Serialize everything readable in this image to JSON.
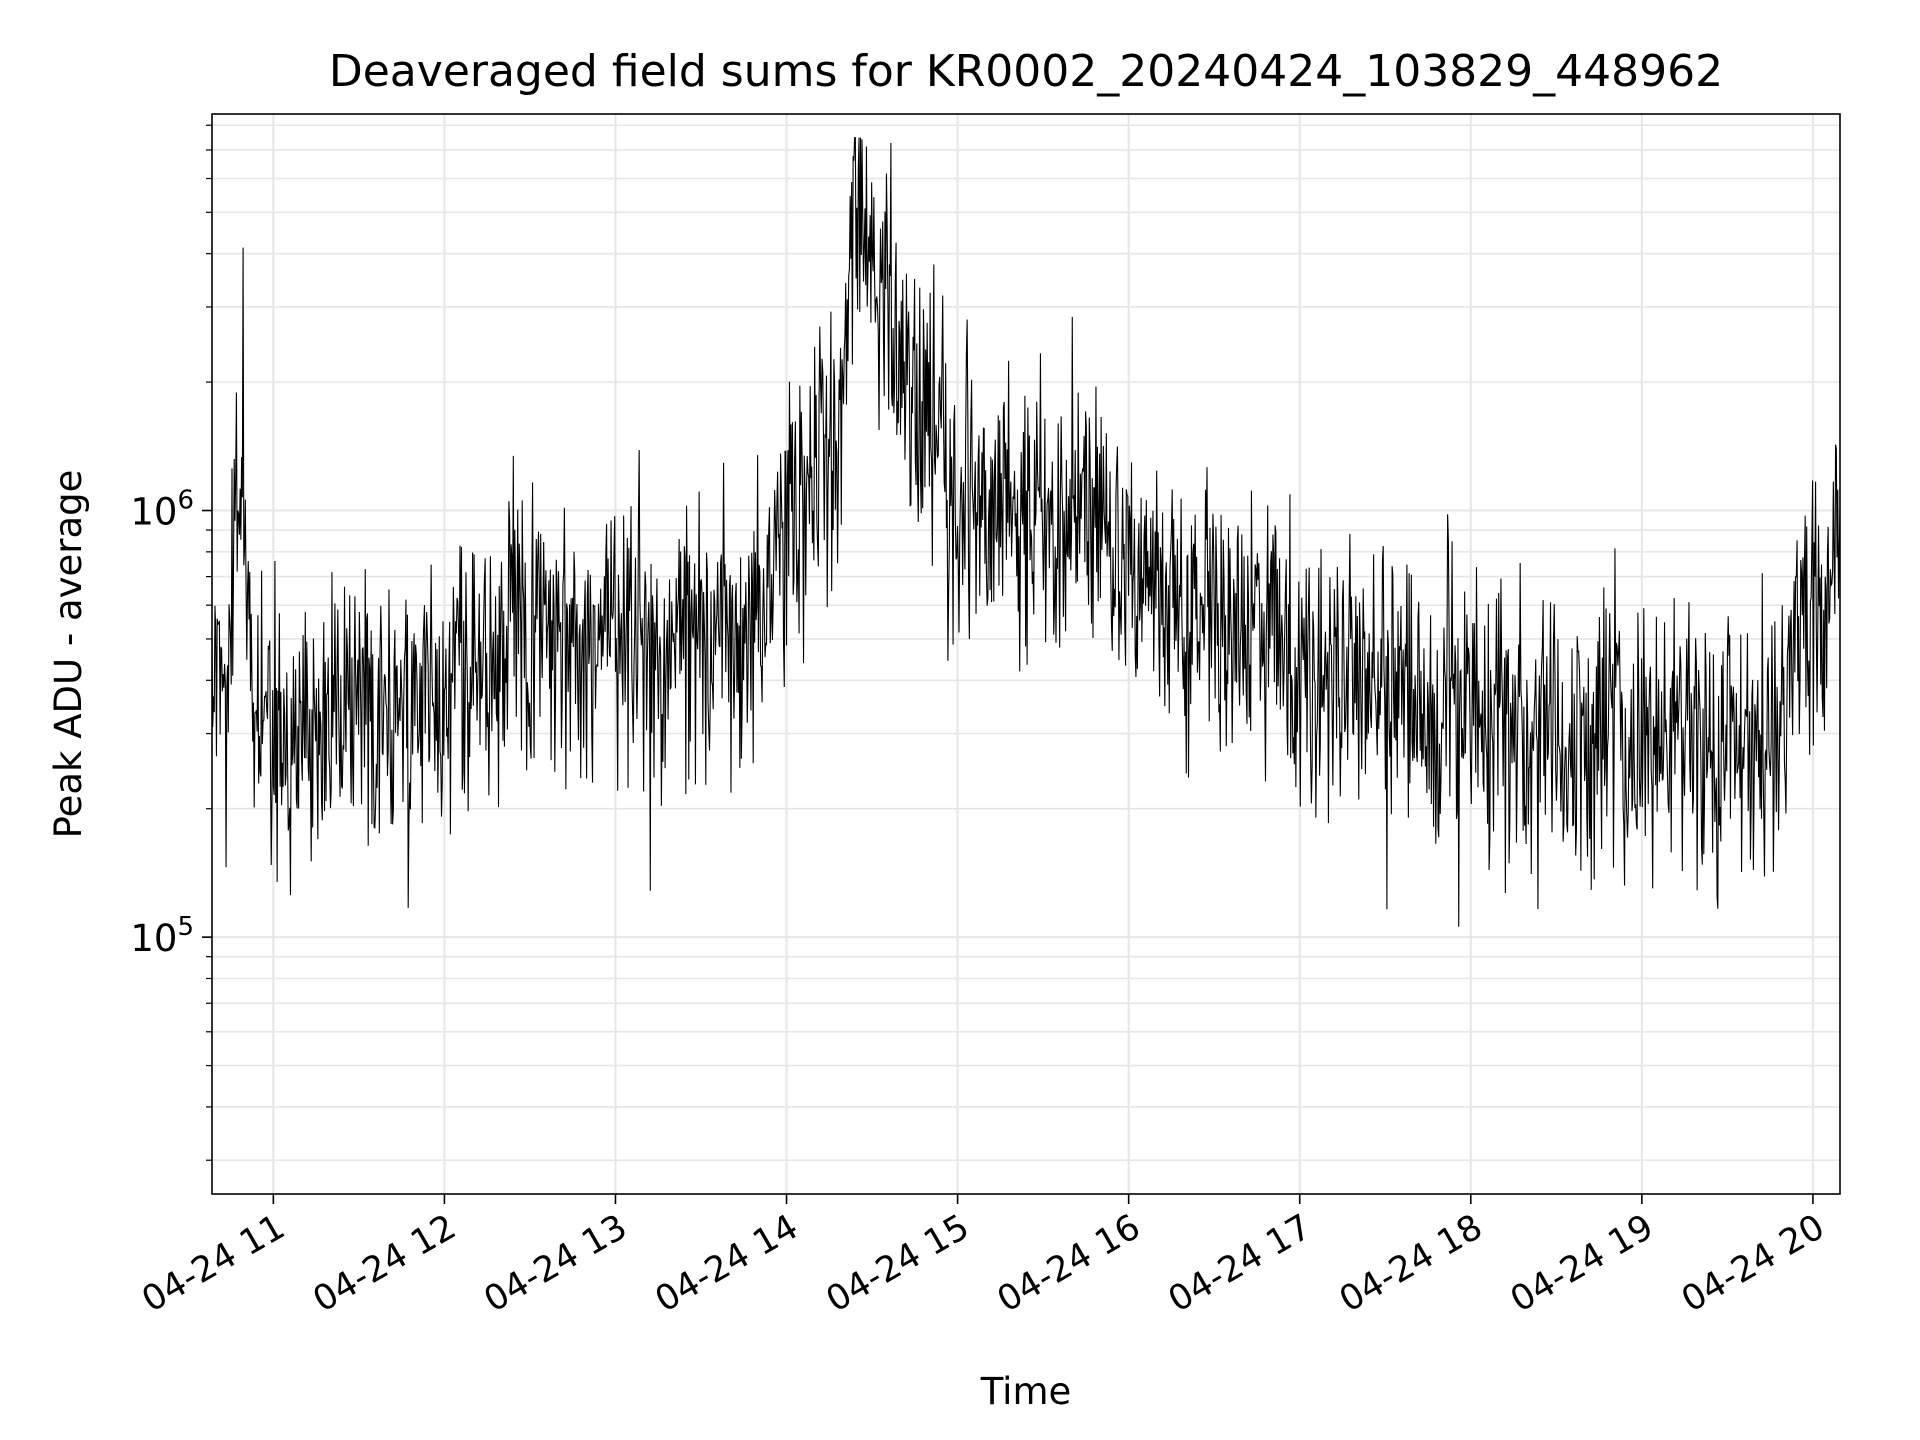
{
  "chart_data": {
    "type": "line",
    "title": "Deaveraged field sums for KR0002_20240424_103829_448962",
    "xlabel": "Time",
    "ylabel": "Peak ADU - average",
    "x_scale": "time",
    "y_scale": "log",
    "xlim": [
      "2024-04-24T10:38:29",
      "2024-04-24T20:09:30"
    ],
    "ylim": [
      25000,
      8500000
    ],
    "x_ticks": [
      {
        "value": "2024-04-24T11:00:00",
        "label": "04-24 11"
      },
      {
        "value": "2024-04-24T12:00:00",
        "label": "04-24 12"
      },
      {
        "value": "2024-04-24T13:00:00",
        "label": "04-24 13"
      },
      {
        "value": "2024-04-24T14:00:00",
        "label": "04-24 14"
      },
      {
        "value": "2024-04-24T15:00:00",
        "label": "04-24 15"
      },
      {
        "value": "2024-04-24T16:00:00",
        "label": "04-24 16"
      },
      {
        "value": "2024-04-24T17:00:00",
        "label": "04-24 17"
      },
      {
        "value": "2024-04-24T18:00:00",
        "label": "04-24 18"
      },
      {
        "value": "2024-04-24T19:00:00",
        "label": "04-24 19"
      },
      {
        "value": "2024-04-24T20:00:00",
        "label": "04-24 20"
      }
    ],
    "y_major_ticks": [
      {
        "value": 100000,
        "base": "10",
        "exp": "5"
      },
      {
        "value": 1000000,
        "base": "10",
        "exp": "6"
      }
    ],
    "grid": true,
    "legend": "none",
    "line_color": "#000000",
    "series": [
      {
        "x": [
          "2024-04-24T10:38:29",
          "2024-04-24T10:45:00",
          "2024-04-24T10:49:00",
          "2024-04-24T10:52:00",
          "2024-04-24T11:00:00",
          "2024-04-24T11:06:00",
          "2024-04-24T11:15:00",
          "2024-04-24T11:25:00",
          "2024-04-24T11:30:00",
          "2024-04-24T11:38:00",
          "2024-04-24T11:45:00",
          "2024-04-24T12:00:00",
          "2024-04-24T12:20:00",
          "2024-04-24T12:24:00",
          "2024-04-24T12:33:00",
          "2024-04-24T12:40:00",
          "2024-04-24T12:46:00",
          "2024-04-24T12:50:00",
          "2024-04-24T13:00:00",
          "2024-04-24T13:10:00",
          "2024-04-24T13:15:00",
          "2024-04-24T13:27:00",
          "2024-04-24T13:30:00",
          "2024-04-24T13:42:00",
          "2024-04-24T13:50:00",
          "2024-04-24T13:58:00",
          "2024-04-24T14:13:00",
          "2024-04-24T14:20:00",
          "2024-04-24T14:24:00",
          "2024-04-24T14:40:00",
          "2024-04-24T14:47:00",
          "2024-04-24T15:00:00",
          "2024-04-24T15:15:00",
          "2024-04-24T15:20:00",
          "2024-04-24T15:30:00",
          "2024-04-24T15:45:00",
          "2024-04-24T15:55:00",
          "2024-04-24T16:00:00",
          "2024-04-24T16:15:00",
          "2024-04-24T16:30:00",
          "2024-04-24T17:00:00",
          "2024-04-24T17:30:00",
          "2024-04-24T18:00:00",
          "2024-04-24T18:10:00",
          "2024-04-24T18:30:00",
          "2024-04-24T19:00:00",
          "2024-04-24T19:30:00",
          "2024-04-24T19:45:00",
          "2024-04-24T20:00:00",
          "2024-04-24T20:09:30"
        ],
        "y": [
          450000,
          400000,
          1700000,
          350000,
          300000,
          280000,
          320000,
          330000,
          380000,
          300000,
          320000,
          380000,
          450000,
          550000,
          500000,
          550000,
          500000,
          480000,
          500000,
          520000,
          520000,
          550000,
          500000,
          550000,
          600000,
          900000,
          1400000,
          2000000,
          6200000,
          2200000,
          1500000,
          1000000,
          1100000,
          1000000,
          900000,
          1100000,
          800000,
          700000,
          600000,
          550000,
          450000,
          380000,
          330000,
          320000,
          300000,
          300000,
          280000,
          270000,
          600000,
          700000
        ]
      }
    ]
  }
}
